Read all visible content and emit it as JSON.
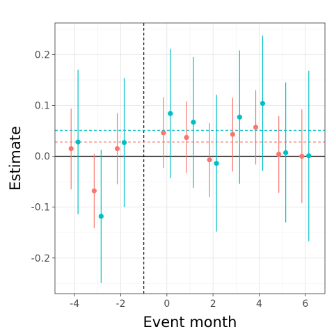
{
  "chart_data": {
    "type": "scatter",
    "title": "",
    "xlabel": "Event month",
    "ylabel": "Estimate",
    "xlim": [
      -4.85,
      6.85
    ],
    "ylim": [
      -0.27,
      0.262
    ],
    "x_ticks": [
      -4,
      -2,
      0,
      2,
      4,
      6
    ],
    "x_tick_labels": [
      "-4",
      "-2",
      "0",
      "2",
      "4",
      "6"
    ],
    "y_ticks": [
      -0.2,
      -0.1,
      0.0,
      0.1,
      0.2
    ],
    "y_tick_labels": [
      "-0.2",
      "-0.1",
      "0.0",
      "0.1",
      "0.2"
    ],
    "grid": true,
    "legend": "none",
    "reference_lines": {
      "vertical_dashed_x": -1,
      "horizontal_solid_y": 0
    },
    "series": [
      {
        "color": "#F8766D",
        "dodge": -0.15,
        "mean_line": 0.028,
        "points": [
          {
            "x": -4,
            "y": 0.015,
            "lo": -0.065,
            "hi": 0.094
          },
          {
            "x": -3,
            "y": -0.068,
            "lo": -0.141,
            "hi": 0.005
          },
          {
            "x": -2,
            "y": 0.015,
            "lo": -0.055,
            "hi": 0.085
          },
          {
            "x": 0,
            "y": 0.046,
            "lo": -0.023,
            "hi": 0.116
          },
          {
            "x": 1,
            "y": 0.037,
            "lo": -0.033,
            "hi": 0.108
          },
          {
            "x": 2,
            "y": -0.007,
            "lo": -0.08,
            "hi": 0.065
          },
          {
            "x": 3,
            "y": 0.043,
            "lo": -0.03,
            "hi": 0.115
          },
          {
            "x": 4,
            "y": 0.057,
            "lo": -0.016,
            "hi": 0.13
          },
          {
            "x": 5,
            "y": 0.004,
            "lo": -0.072,
            "hi": 0.079
          },
          {
            "x": 6,
            "y": 0.0,
            "lo": -0.092,
            "hi": 0.092
          }
        ]
      },
      {
        "color": "#00BFC4",
        "dodge": 0.15,
        "mean_line": 0.051,
        "points": [
          {
            "x": -4,
            "y": 0.028,
            "lo": -0.114,
            "hi": 0.17
          },
          {
            "x": -3,
            "y": -0.118,
            "lo": -0.249,
            "hi": 0.013
          },
          {
            "x": -2,
            "y": 0.027,
            "lo": -0.1,
            "hi": 0.154
          },
          {
            "x": 0,
            "y": 0.084,
            "lo": -0.043,
            "hi": 0.211
          },
          {
            "x": 1,
            "y": 0.067,
            "lo": -0.062,
            "hi": 0.195
          },
          {
            "x": 2,
            "y": -0.014,
            "lo": -0.148,
            "hi": 0.121
          },
          {
            "x": 3,
            "y": 0.077,
            "lo": -0.054,
            "hi": 0.208
          },
          {
            "x": 4,
            "y": 0.104,
            "lo": -0.029,
            "hi": 0.237
          },
          {
            "x": 5,
            "y": 0.007,
            "lo": -0.13,
            "hi": 0.145
          },
          {
            "x": 6,
            "y": 0.001,
            "lo": -0.167,
            "hi": 0.168
          }
        ]
      }
    ]
  }
}
